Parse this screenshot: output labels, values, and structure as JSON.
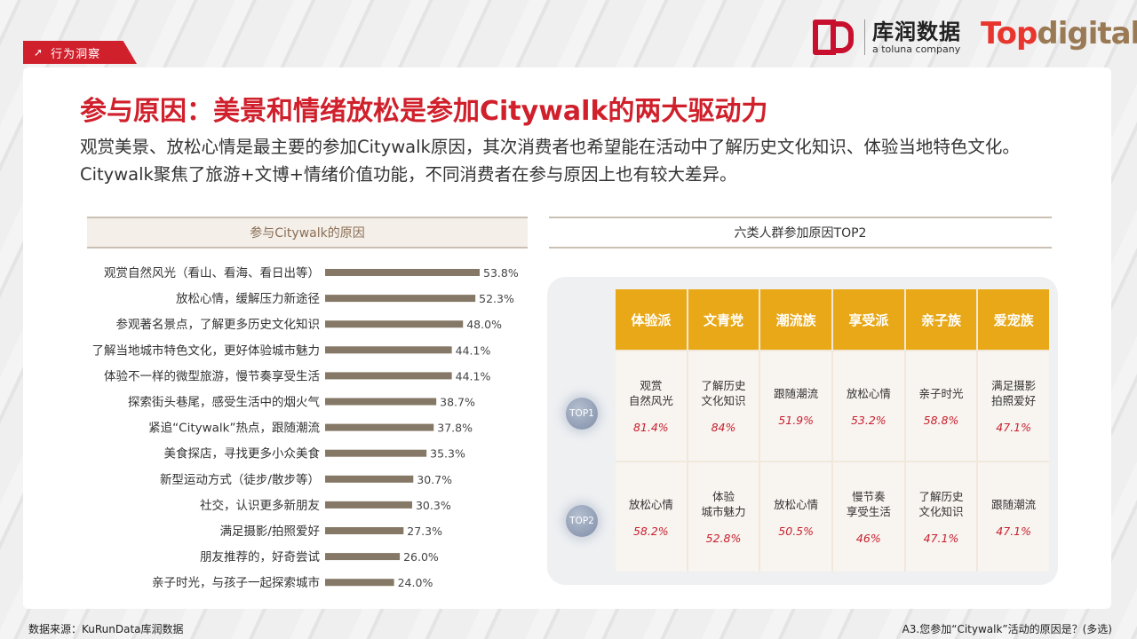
{
  "tag": "行为洞察",
  "logos": {
    "kurun_cn": "库润数据",
    "kurun_en": "a toluna company",
    "top": "Top",
    "digital": "digital"
  },
  "title": "参与原因：美景和情绪放松是参加Citywalk的两大驱动力",
  "description": "观赏美景、放松心情是最主要的参加Citywalk原因，其次消费者也希望能在活动中了解历史文化知识、体验当地特色文化。Citywalk聚焦了旅游+文博+情绪价值功能，不同消费者在参与原因上也有较大差异。",
  "left_header": "参与Citywalk的原因",
  "right_header": "六类人群参加原因TOP2",
  "chart_data": {
    "type": "bar",
    "orientation": "horizontal",
    "title": "参与Citywalk的原因",
    "bar_color": "#857866",
    "xlim": [
      0,
      60
    ],
    "categories": [
      "观赏自然风光（看山、看海、看日出等）",
      "放松心情，缓解压力新途径",
      "参观著名景点，了解更多历史文化知识",
      "了解当地城市特色文化，更好体验城市魅力",
      "体验不一样的微型旅游，慢节奏享受生活",
      "探索街头巷尾，感受生活中的烟火气",
      "紧追“Citywalk”热点，跟随潮流",
      "美食探店，寻找更多小众美食",
      "新型运动方式（徒步/散步等）",
      "社交，认识更多新朋友",
      "满足摄影/拍照爱好",
      "朋友推荐的，好奇尝试",
      "亲子时光，与孩子一起探索城市"
    ],
    "values": [
      53.8,
      52.3,
      48.0,
      44.1,
      44.1,
      38.7,
      37.8,
      35.3,
      30.7,
      30.3,
      27.3,
      26.0,
      24.0
    ],
    "value_labels": [
      "53.8%",
      "52.3%",
      "48.0%",
      "44.1%",
      "44.1%",
      "38.7%",
      "37.8%",
      "35.3%",
      "30.7%",
      "30.3%",
      "27.3%",
      "26.0%",
      "24.0%"
    ]
  },
  "table": {
    "groups": [
      "体验派",
      "文青党",
      "潮流族",
      "享受派",
      "亲子族",
      "爱宠族"
    ],
    "row_labels": [
      "TOP1",
      "TOP2"
    ],
    "rows": [
      [
        {
          "label": "观赏\n自然风光",
          "pct": "81.4%"
        },
        {
          "label": "了解历史\n文化知识",
          "pct": "84%"
        },
        {
          "label": "跟随潮流",
          "pct": "51.9%"
        },
        {
          "label": "放松心情",
          "pct": "53.2%"
        },
        {
          "label": "亲子时光",
          "pct": "58.8%"
        },
        {
          "label": "满足摄影\n拍照爱好",
          "pct": "47.1%"
        }
      ],
      [
        {
          "label": "放松心情",
          "pct": "58.2%"
        },
        {
          "label": "体验\n城市魅力",
          "pct": "52.8%"
        },
        {
          "label": "放松心情",
          "pct": "50.5%"
        },
        {
          "label": "慢节奏\n享受生活",
          "pct": "46%"
        },
        {
          "label": "了解历史\n文化知识",
          "pct": "47.1%"
        },
        {
          "label": "跟随潮流",
          "pct": "47.1%"
        }
      ]
    ]
  },
  "footer": {
    "source": "数据来源：KuRunData库润数据",
    "question": "A3.您参加“Citywalk”活动的原因是？(多选)"
  },
  "colors": {
    "accent_red": "#d0202c",
    "header_gold": "#e8a817",
    "pct_red": "#c8212f"
  }
}
